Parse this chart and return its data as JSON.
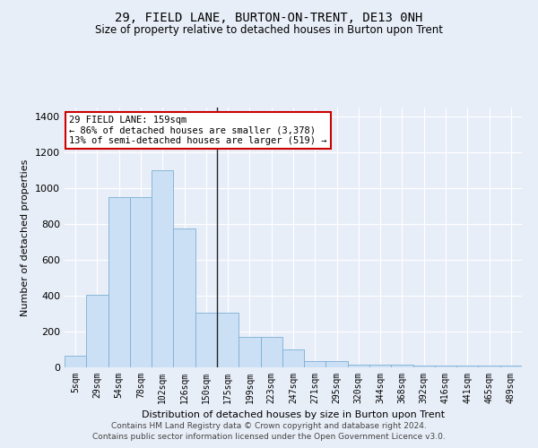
{
  "title": "29, FIELD LANE, BURTON-ON-TRENT, DE13 0NH",
  "subtitle": "Size of property relative to detached houses in Burton upon Trent",
  "xlabel": "Distribution of detached houses by size in Burton upon Trent",
  "ylabel": "Number of detached properties",
  "bar_color": "#cce0f5",
  "bar_edge_color": "#7bafd4",
  "background_color": "#e8eef8",
  "fig_color": "#e8eef8",
  "annotation_box_edge": "#cc0000",
  "annotation_text": "29 FIELD LANE: 159sqm\n← 86% of detached houses are smaller (3,378)\n13% of semi-detached houses are larger (519) →",
  "categories": [
    "5sqm",
    "29sqm",
    "54sqm",
    "78sqm",
    "102sqm",
    "126sqm",
    "150sqm",
    "175sqm",
    "199sqm",
    "223sqm",
    "247sqm",
    "271sqm",
    "295sqm",
    "320sqm",
    "344sqm",
    "368sqm",
    "392sqm",
    "416sqm",
    "441sqm",
    "465sqm",
    "489sqm"
  ],
  "values": [
    65,
    405,
    950,
    950,
    1100,
    775,
    305,
    305,
    170,
    170,
    100,
    35,
    35,
    15,
    15,
    15,
    10,
    10,
    10,
    10,
    10
  ],
  "ylim": [
    0,
    1450
  ],
  "yticks": [
    0,
    200,
    400,
    600,
    800,
    1000,
    1200,
    1400
  ],
  "vline_pos": 6.5,
  "footer": "Contains HM Land Registry data © Crown copyright and database right 2024.\nContains public sector information licensed under the Open Government Licence v3.0."
}
